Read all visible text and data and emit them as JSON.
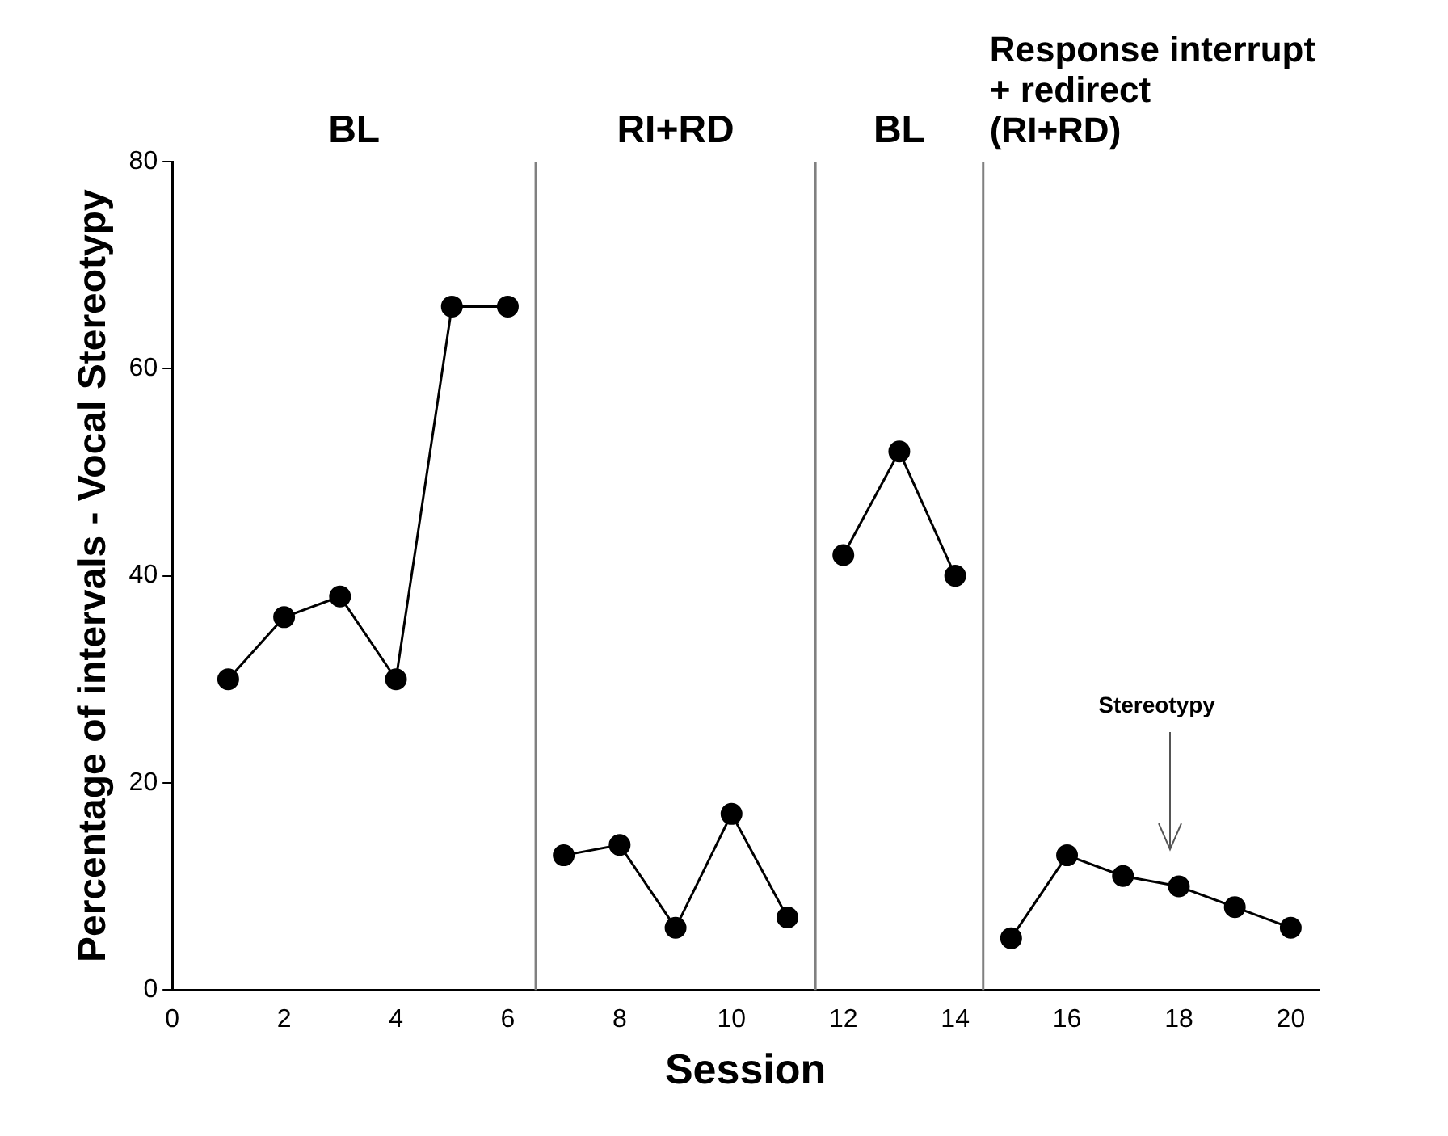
{
  "chart_data": {
    "type": "line",
    "xlabel": "Session",
    "ylabel": "Percentage of intervals - Vocal Stereotypy",
    "series": [
      {
        "color": "#000000",
        "x": [
          1,
          2,
          3,
          4,
          5,
          6
        ],
        "values": [
          30,
          36,
          38,
          30,
          66,
          66
        ]
      },
      {
        "color": "#000000",
        "x": [
          7,
          8,
          9,
          10,
          11
        ],
        "values": [
          13,
          14,
          6,
          17,
          7
        ]
      },
      {
        "color": "#000000",
        "x": [
          12,
          13,
          14
        ],
        "values": [
          42,
          52,
          40
        ]
      },
      {
        "color": "#000000",
        "x": [
          15,
          16,
          17,
          18,
          19,
          20
        ],
        "values": [
          5,
          13,
          11,
          10,
          8,
          6
        ]
      }
    ],
    "xlim": [
      0,
      20.5
    ],
    "xticks": [
      0,
      2,
      4,
      6,
      8,
      10,
      12,
      14,
      16,
      18,
      20
    ],
    "ylim": [
      0,
      80
    ],
    "yticks": [
      0,
      20,
      40,
      60,
      80
    ],
    "ref_lines": [
      {
        "axis": "x",
        "value": 6.5,
        "color": "#808080"
      },
      {
        "axis": "x",
        "value": 11.5,
        "color": "#808080"
      },
      {
        "axis": "x",
        "value": 14.5,
        "color": "#808080"
      }
    ],
    "annotations": [
      "BL",
      "RI+RD",
      "BL",
      "Response interrupt\n+ redirect\n(RI+RD)",
      "Stereotypy"
    ],
    "grid": false,
    "legend": false,
    "marker": "circle",
    "line_style": "solid"
  }
}
